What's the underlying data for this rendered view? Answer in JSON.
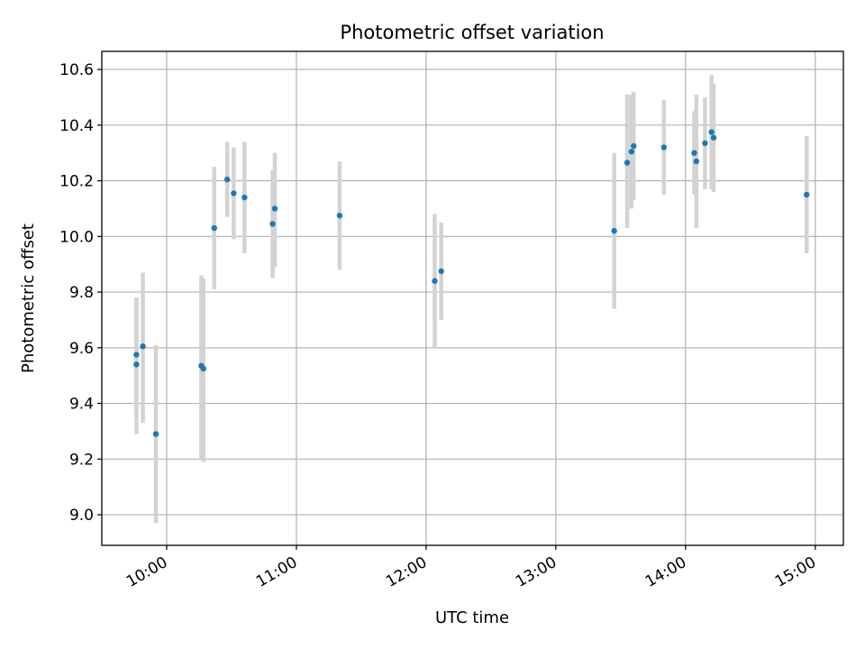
{
  "chart_data": {
    "type": "scatter",
    "title": "Photometric offset variation",
    "xlabel": "UTC time",
    "ylabel": "Photometric offset",
    "x_axis_type": "time",
    "xlim": [
      "09:30",
      "15:13"
    ],
    "ylim": [
      8.89,
      10.665
    ],
    "grid": true,
    "x_ticks": [
      "10:00",
      "11:00",
      "12:00",
      "13:00",
      "14:00",
      "15:00"
    ],
    "y_ticks": [
      "9.0",
      "9.2",
      "9.4",
      "9.6",
      "9.8",
      "10.0",
      "10.2",
      "10.4",
      "10.6"
    ],
    "colors": {
      "marker": "#1f77b4",
      "error_bar": "#d3d3d3",
      "grid": "#b0b0b0"
    },
    "series": [
      {
        "points": [
          {
            "x": "09:46",
            "y": 9.575,
            "yerr_low": 9.37,
            "yerr_high": 9.78
          },
          {
            "x": "09:46",
            "y": 9.54,
            "yerr_low": 9.29,
            "yerr_high": 9.78
          },
          {
            "x": "09:49",
            "y": 9.605,
            "yerr_low": 9.33,
            "yerr_high": 9.87
          },
          {
            "x": "09:55",
            "y": 9.29,
            "yerr_low": 8.97,
            "yerr_high": 9.61
          },
          {
            "x": "10:16",
            "y": 9.535,
            "yerr_low": 9.2,
            "yerr_high": 9.86
          },
          {
            "x": "10:17",
            "y": 9.525,
            "yerr_low": 9.19,
            "yerr_high": 9.85
          },
          {
            "x": "10:22",
            "y": 10.03,
            "yerr_low": 9.81,
            "yerr_high": 10.25
          },
          {
            "x": "10:28",
            "y": 10.205,
            "yerr_low": 10.07,
            "yerr_high": 10.34
          },
          {
            "x": "10:31",
            "y": 10.155,
            "yerr_low": 9.99,
            "yerr_high": 10.32
          },
          {
            "x": "10:36",
            "y": 10.14,
            "yerr_low": 9.94,
            "yerr_high": 10.34
          },
          {
            "x": "10:49",
            "y": 10.045,
            "yerr_low": 9.85,
            "yerr_high": 10.24
          },
          {
            "x": "10:50",
            "y": 10.1,
            "yerr_low": 9.89,
            "yerr_high": 10.3
          },
          {
            "x": "11:20",
            "y": 10.075,
            "yerr_low": 9.88,
            "yerr_high": 10.27
          },
          {
            "x": "12:04",
            "y": 9.84,
            "yerr_low": 9.6,
            "yerr_high": 10.08
          },
          {
            "x": "12:07",
            "y": 9.875,
            "yerr_low": 9.7,
            "yerr_high": 10.05
          },
          {
            "x": "13:27",
            "y": 10.02,
            "yerr_low": 9.74,
            "yerr_high": 10.3
          },
          {
            "x": "13:33",
            "y": 10.265,
            "yerr_low": 10.03,
            "yerr_high": 10.51
          },
          {
            "x": "13:35",
            "y": 10.305,
            "yerr_low": 10.1,
            "yerr_high": 10.51
          },
          {
            "x": "13:36",
            "y": 10.325,
            "yerr_low": 10.13,
            "yerr_high": 10.52
          },
          {
            "x": "13:50",
            "y": 10.32,
            "yerr_low": 10.15,
            "yerr_high": 10.49
          },
          {
            "x": "14:04",
            "y": 10.3,
            "yerr_low": 10.15,
            "yerr_high": 10.45
          },
          {
            "x": "14:05",
            "y": 10.27,
            "yerr_low": 10.03,
            "yerr_high": 10.51
          },
          {
            "x": "14:09",
            "y": 10.335,
            "yerr_low": 10.17,
            "yerr_high": 10.5
          },
          {
            "x": "14:12",
            "y": 10.375,
            "yerr_low": 10.17,
            "yerr_high": 10.58
          },
          {
            "x": "14:13",
            "y": 10.355,
            "yerr_low": 10.16,
            "yerr_high": 10.55
          },
          {
            "x": "14:56",
            "y": 10.15,
            "yerr_low": 9.94,
            "yerr_high": 10.36
          }
        ]
      }
    ]
  }
}
